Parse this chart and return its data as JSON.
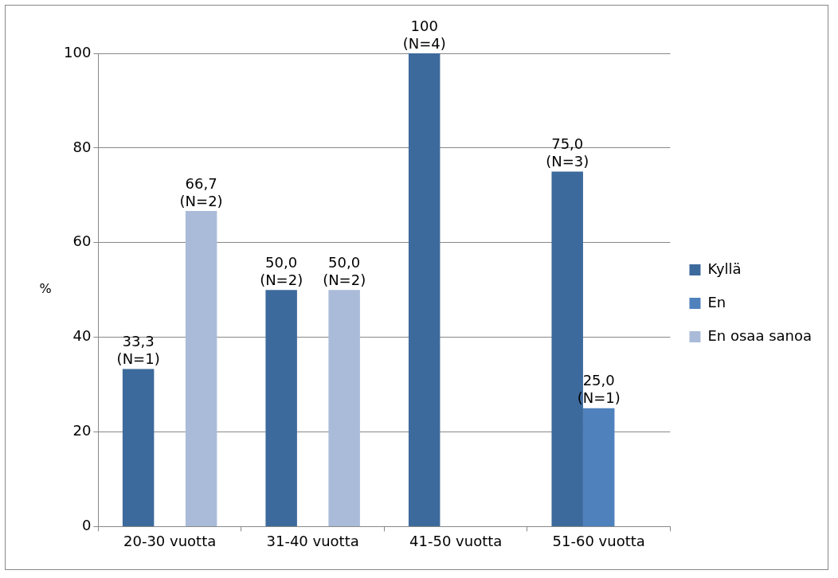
{
  "chart_data": {
    "type": "bar",
    "ylabel": "%",
    "categories": [
      "20-30 vuotta",
      "31-40 vuotta",
      "41-50 vuotta",
      "51-60 vuotta"
    ],
    "series": [
      {
        "name": "Kyllä",
        "color": "#3d6a9c",
        "values": [
          33.3,
          50.0,
          100,
          75.0
        ],
        "value_labels": [
          "33,3\n(N=1)",
          "50,0\n(N=2)",
          "100\n(N=4)",
          "75,0\n(N=3)"
        ]
      },
      {
        "name": "En",
        "color": "#4f81bd",
        "values": [
          null,
          null,
          null,
          25.0
        ],
        "value_labels": [
          null,
          null,
          null,
          "25,0\n(N=1)"
        ]
      },
      {
        "name": "En osaa sanoa",
        "color": "#aabbd9",
        "values": [
          66.7,
          50.0,
          null,
          null
        ],
        "value_labels": [
          "66,7\n(N=2)",
          "50,0\n(N=2)",
          null,
          null
        ]
      }
    ],
    "ylim": [
      0,
      100
    ],
    "yticks": [
      0,
      20,
      40,
      60,
      80,
      100
    ],
    "grid": "y",
    "legend": "right"
  }
}
